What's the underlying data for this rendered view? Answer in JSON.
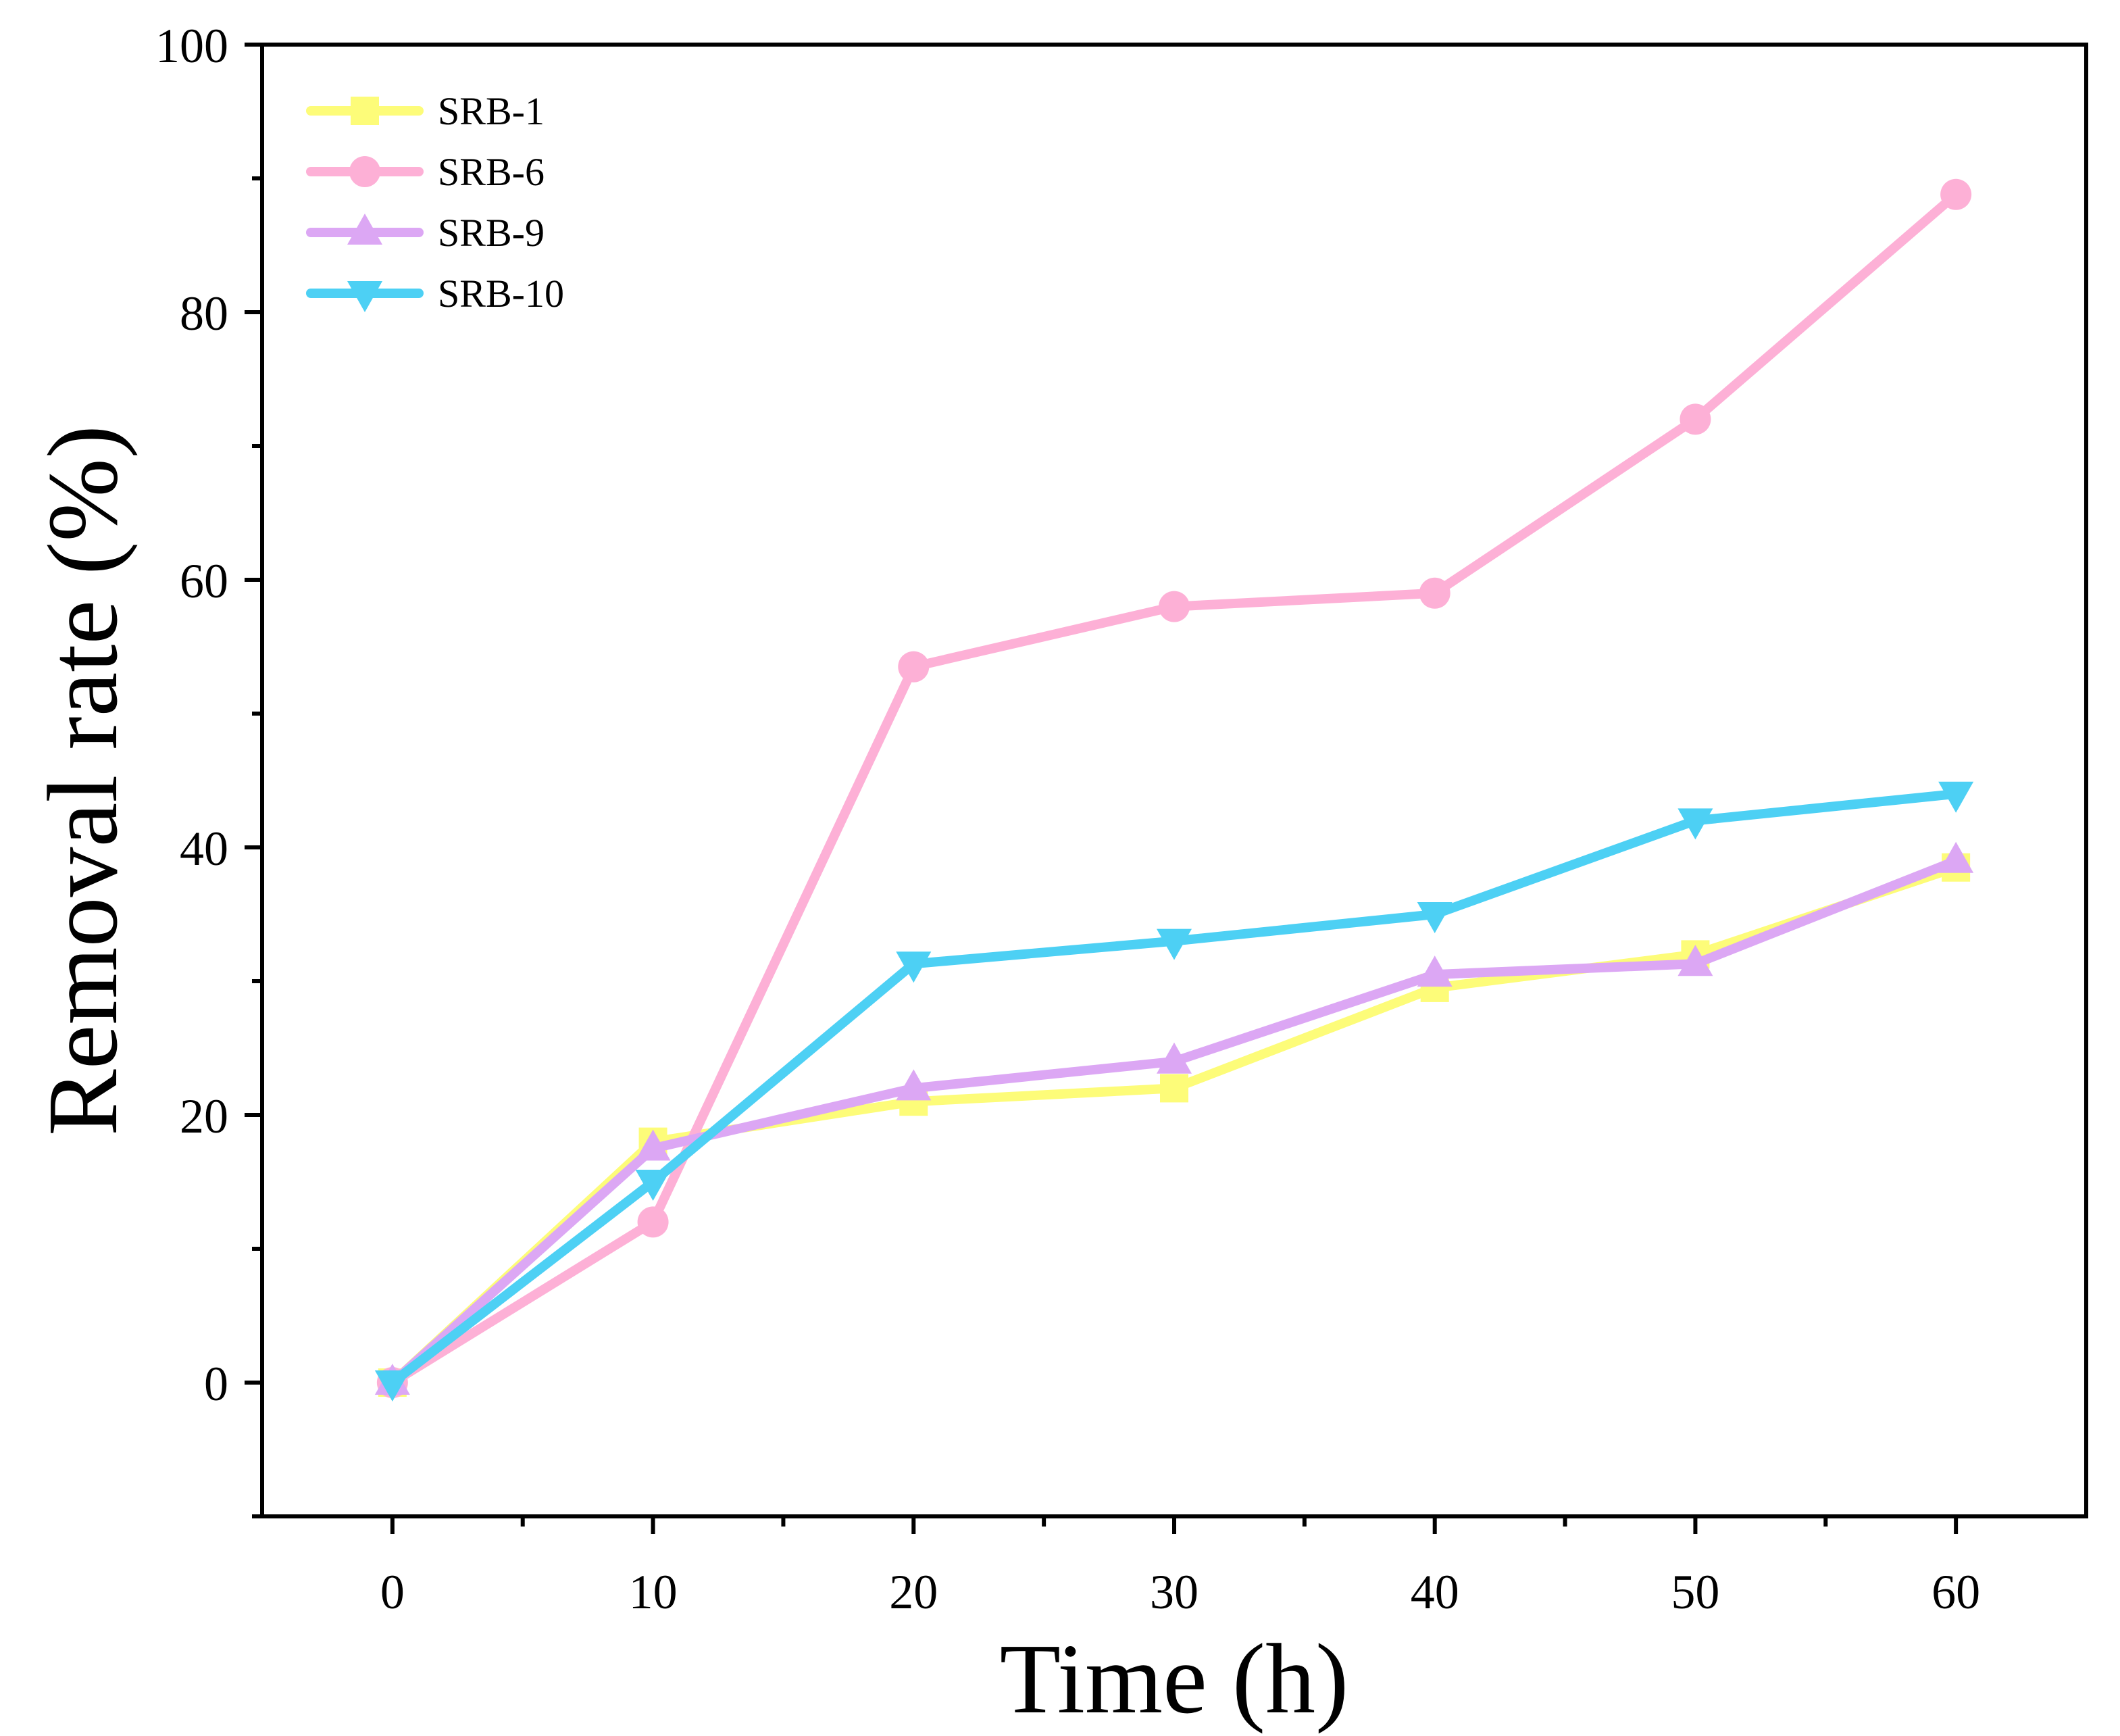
{
  "chart_data": {
    "type": "line",
    "title": "",
    "xlabel": "Time (h)",
    "ylabel": "Removal rate (%)",
    "x": [
      0,
      10,
      20,
      30,
      40,
      50,
      60
    ],
    "xlim": [
      -5,
      65
    ],
    "ylim": [
      -10,
      100
    ],
    "xticks": [
      0,
      10,
      20,
      30,
      40,
      50,
      60
    ],
    "xminor": [
      5,
      15,
      25,
      35,
      45,
      55
    ],
    "yticks": [
      0,
      20,
      40,
      60,
      80,
      100
    ],
    "yminor": [
      -10,
      10,
      30,
      50,
      70,
      90
    ],
    "grid": false,
    "legend_position": "top-left",
    "series": [
      {
        "name": "SRB-1",
        "marker": "square",
        "color": "#FDFC79",
        "values": [
          0,
          18,
          21,
          22,
          29.5,
          32,
          38.5
        ]
      },
      {
        "name": "SRB-6",
        "marker": "circle",
        "color": "#FDB0D6",
        "values": [
          0,
          12,
          53.5,
          58,
          59,
          72,
          88.8
        ]
      },
      {
        "name": "SRB-9",
        "marker": "triangle-up",
        "color": "#DCA7F4",
        "values": [
          0,
          17.5,
          22,
          24,
          30.5,
          31.3,
          39
        ]
      },
      {
        "name": "SRB-10",
        "marker": "triangle-down",
        "color": "#4DD0F4",
        "values": [
          0,
          15,
          31.3,
          33,
          35,
          42,
          44
        ]
      }
    ]
  }
}
